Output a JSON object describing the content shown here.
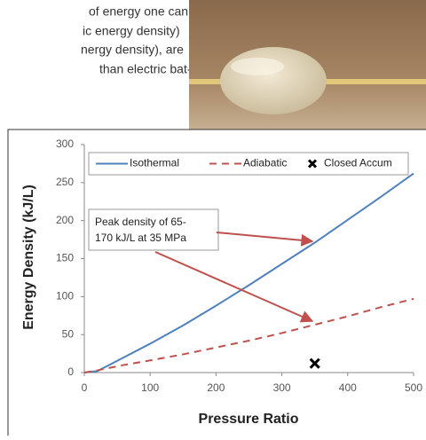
{
  "document": {
    "text_lines": [
      "of energy one can",
      "ic energy density)",
      "nergy density), are",
      "than electric bat-"
    ]
  },
  "chart_data": {
    "type": "line",
    "x_label": "Pressure Ratio",
    "y_label": "Energy Density (kJ/L)",
    "annotations": [
      "Peak density of 65-",
      "170 kJ/L at 35 MPa"
    ],
    "x": [
      0,
      20,
      60,
      100,
      150,
      200,
      250,
      300,
      350,
      400,
      450,
      500
    ],
    "series": [
      {
        "name": "Isothermal",
        "color": "#4f81bd",
        "style": "solid",
        "values": [
          0,
          2,
          20,
          38,
          62,
          88,
          115,
          143,
          171,
          201,
          231,
          262
        ]
      },
      {
        "name": "Adiabatic",
        "color": "#c0504d",
        "style": "dashed",
        "values": [
          0,
          3,
          10,
          16,
          24,
          33,
          42,
          52,
          63,
          74,
          86,
          97
        ]
      },
      {
        "name": "Closed Accum",
        "color": "#000000",
        "style": "marker",
        "values": [
          null,
          null,
          null,
          null,
          null,
          null,
          null,
          null,
          12,
          null,
          null,
          null
        ]
      }
    ],
    "xlim": [
      0,
      500
    ],
    "xticks": [
      0,
      100,
      200,
      300,
      400,
      500
    ],
    "ylim": [
      0,
      300
    ],
    "yticks": [
      0,
      50,
      100,
      150,
      200,
      250,
      300
    ],
    "grid": false,
    "legend": "top"
  }
}
